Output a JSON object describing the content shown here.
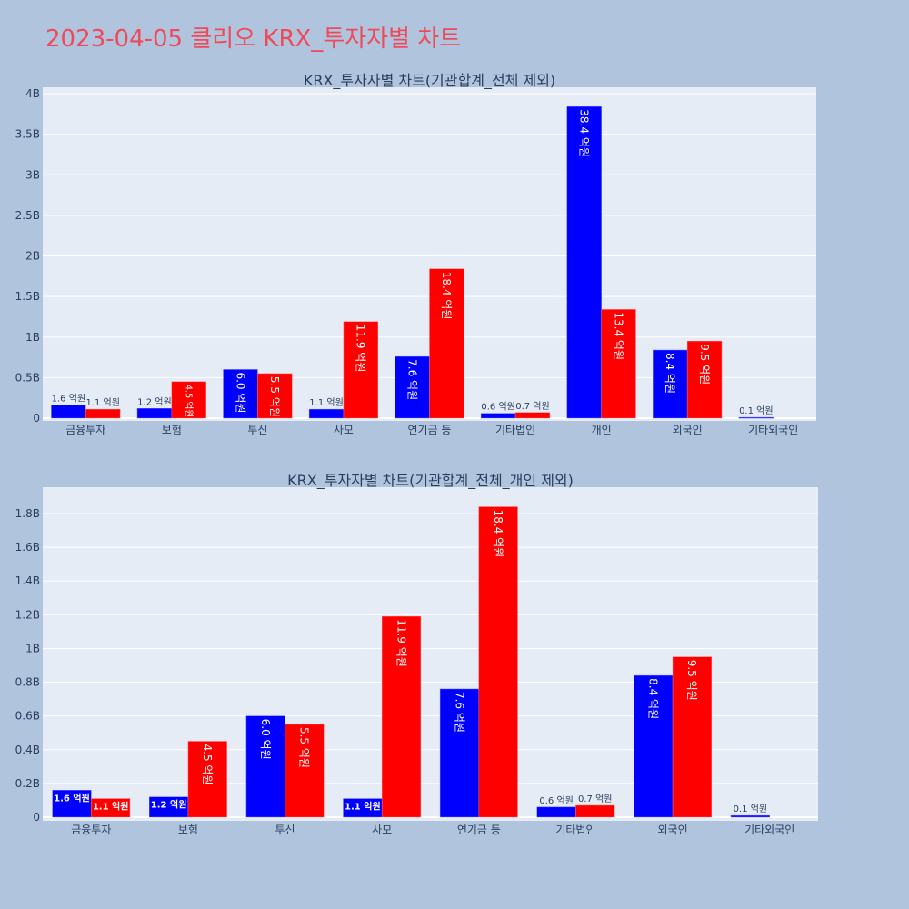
{
  "page_title": "2023-04-05 클리오 KRX_투자자별 차트",
  "colors": {
    "sell": "#0000ff",
    "buy": "#ff0000",
    "plot_bg": "#e5ecf6",
    "page_bg": "#b0c4de",
    "title": "#ef4a5a"
  },
  "chart_data": [
    {
      "type": "bar",
      "title": "KRX_투자자별 차트(기관합계_전체 제외)",
      "categories": [
        "금융투자",
        "보험",
        "투신",
        "사모",
        "연기금 등",
        "기타법인",
        "개인",
        "외국인",
        "기타외국인"
      ],
      "series": [
        {
          "color": "#0000ff",
          "values_eok": [
            1.6,
            1.2,
            6.0,
            1.1,
            7.6,
            0.6,
            38.4,
            8.4,
            0.1
          ]
        },
        {
          "color": "#ff0000",
          "values_eok": [
            1.1,
            4.5,
            5.5,
            11.9,
            18.4,
            0.7,
            13.4,
            9.5,
            null
          ]
        }
      ],
      "label_suffix": " 억원",
      "ylim_B": [
        0,
        4
      ],
      "yticks": [
        "0",
        "0.5B",
        "1B",
        "1.5B",
        "2B",
        "2.5B",
        "3B",
        "3.5B",
        "4B"
      ],
      "ytick_values_B": [
        0,
        0.5,
        1,
        1.5,
        2,
        2.5,
        3,
        3.5,
        4
      ],
      "grid": true
    },
    {
      "type": "bar",
      "title": "KRX_투자자별 차트(기관합계_전체_개인 제외)",
      "categories": [
        "금융투자",
        "보험",
        "투신",
        "사모",
        "연기금 등",
        "기타법인",
        "외국인",
        "기타외국인"
      ],
      "series": [
        {
          "color": "#0000ff",
          "values_eok": [
            1.6,
            1.2,
            6.0,
            1.1,
            7.6,
            0.6,
            8.4,
            0.1
          ]
        },
        {
          "color": "#ff0000",
          "values_eok": [
            1.1,
            4.5,
            5.5,
            11.9,
            18.4,
            0.7,
            9.5,
            null
          ]
        }
      ],
      "label_suffix": " 억원",
      "ylim_B": [
        0,
        1.8
      ],
      "yticks": [
        "0",
        "0.2B",
        "0.4B",
        "0.6B",
        "0.8B",
        "1B",
        "1.2B",
        "1.4B",
        "1.6B",
        "1.8B"
      ],
      "ytick_values_B": [
        0,
        0.2,
        0.4,
        0.6,
        0.8,
        1,
        1.2,
        1.4,
        1.6,
        1.8
      ],
      "grid": true
    }
  ]
}
